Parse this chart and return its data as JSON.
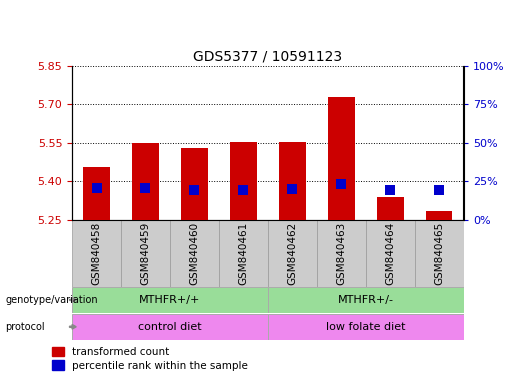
{
  "title": "GDS5377 / 10591123",
  "samples": [
    "GSM840458",
    "GSM840459",
    "GSM840460",
    "GSM840461",
    "GSM840462",
    "GSM840463",
    "GSM840464",
    "GSM840465"
  ],
  "bar_tops": [
    5.455,
    5.55,
    5.53,
    5.555,
    5.555,
    5.73,
    5.34,
    5.285
  ],
  "blue_y": [
    5.375,
    5.375,
    5.365,
    5.365,
    5.37,
    5.39,
    5.365,
    5.365
  ],
  "bar_bottom": 5.25,
  "ylim": [
    5.25,
    5.85
  ],
  "yticks_left": [
    5.25,
    5.4,
    5.55,
    5.7,
    5.85
  ],
  "yticks_right": [
    0,
    25,
    50,
    75,
    100
  ],
  "ytick_right_labels": [
    "0%",
    "25%",
    "50%",
    "75%",
    "100%"
  ],
  "bar_color": "#cc0000",
  "blue_color": "#0000cc",
  "bar_width": 0.55,
  "blue_size": 55,
  "genotype_groups": [
    {
      "label": "MTHFR+/+",
      "start": 0,
      "end": 3,
      "color": "#aaddaa"
    },
    {
      "label": "MTHFR+/-",
      "start": 4,
      "end": 7,
      "color": "#aaddaa"
    }
  ],
  "protocol_groups": [
    {
      "label": "control diet",
      "start": 0,
      "end": 3,
      "color": "#ee88ee"
    },
    {
      "label": "low folate diet",
      "start": 4,
      "end": 7,
      "color": "#ee88ee"
    }
  ],
  "left_tick_color": "#cc0000",
  "right_tick_color": "#0000cc",
  "label_bg_color": "#cccccc",
  "genotype_color": "#99dd99",
  "protocol_color": "#ee88ee",
  "legend_items": [
    "transformed count",
    "percentile rank within the sample"
  ]
}
